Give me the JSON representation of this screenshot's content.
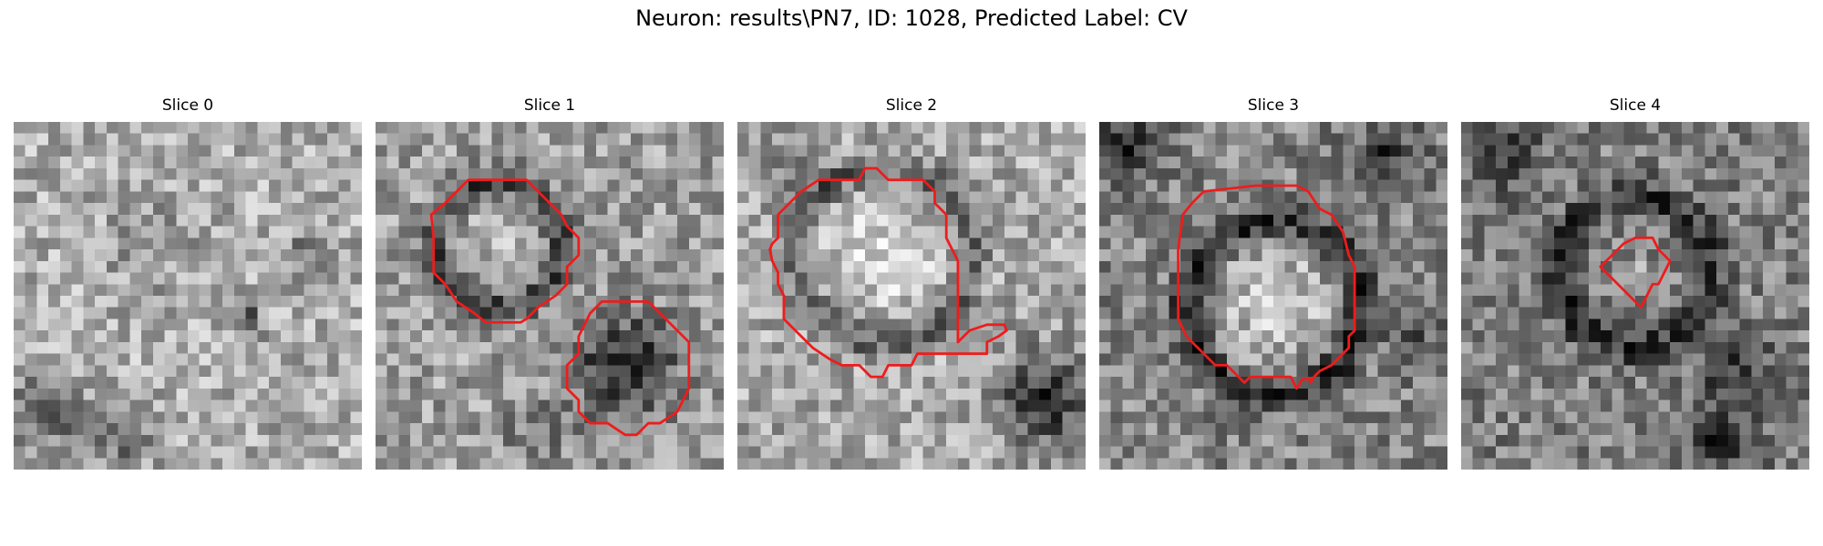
{
  "figure": {
    "title": "Neuron: results\\PN7, ID: 1028, Predicted Label: CV"
  },
  "contour_color": "#ee1c1c",
  "panels": [
    {
      "title": "Slice 0",
      "seed": 11,
      "base": 0.68,
      "has_contour": false
    },
    {
      "title": "Slice 1",
      "seed": 23,
      "base": 0.62,
      "has_contour": true
    },
    {
      "title": "Slice 2",
      "seed": 37,
      "base": 0.66,
      "has_contour": true
    },
    {
      "title": "Slice 3",
      "seed": 41,
      "base": 0.52,
      "has_contour": true
    },
    {
      "title": "Slice 4",
      "seed": 53,
      "base": 0.5,
      "has_contour": true
    }
  ]
}
